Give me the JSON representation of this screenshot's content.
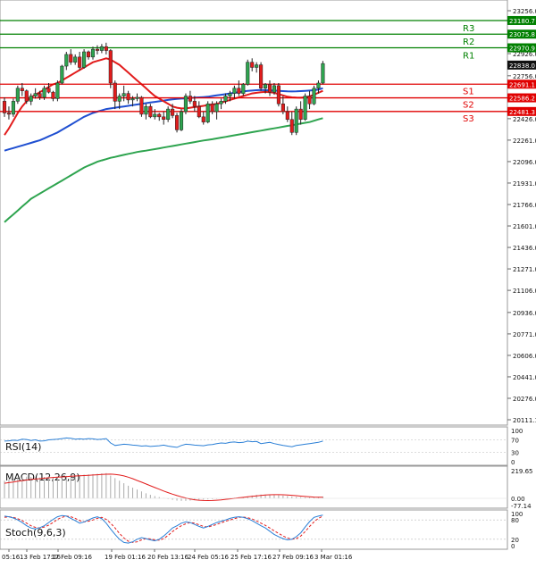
{
  "chart_data": {
    "type": "candlestick",
    "main": {
      "ylim": [
        20111.1,
        23365
      ],
      "y_ticks": [
        23256.0,
        23091.0,
        22926.0,
        22756.0,
        22591.0,
        22426.0,
        22261.0,
        22096.0,
        21931.0,
        21766.0,
        21601.0,
        21436.0,
        21271.0,
        21106.0,
        20936.0,
        20771.0,
        20606.0,
        20441.0,
        20276.0,
        20111.1
      ],
      "current_price": 22838.0,
      "levels": [
        {
          "name": "R3",
          "value": 23180.7,
          "color": "#008000"
        },
        {
          "name": "R2",
          "value": 23075.8,
          "color": "#008000"
        },
        {
          "name": "R1",
          "value": 22970.9,
          "color": "#008000"
        },
        {
          "name": "S1",
          "value": 22691.1,
          "color": "#e00000"
        },
        {
          "name": "S2",
          "value": 22586.2,
          "color": "#e00000"
        },
        {
          "name": "S3",
          "value": 22481.3,
          "color": "#e00000"
        }
      ],
      "candles": [
        [
          22560,
          22590,
          22440,
          22470
        ],
        [
          22470,
          22520,
          22420,
          22460
        ],
        [
          22460,
          22580,
          22440,
          22560
        ],
        [
          22560,
          22680,
          22540,
          22660
        ],
        [
          22660,
          22700,
          22600,
          22640
        ],
        [
          22640,
          22650,
          22540,
          22560
        ],
        [
          22560,
          22620,
          22530,
          22600
        ],
        [
          22600,
          22660,
          22580,
          22620
        ],
        [
          22620,
          22640,
          22570,
          22590
        ],
        [
          22590,
          22680,
          22570,
          22660
        ],
        [
          22660,
          22700,
          22620,
          22630
        ],
        [
          22630,
          22640,
          22560,
          22580
        ],
        [
          22580,
          22720,
          22560,
          22700
        ],
        [
          22700,
          22840,
          22690,
          22830
        ],
        [
          22830,
          22940,
          22800,
          22920
        ],
        [
          22920,
          22960,
          22840,
          22860
        ],
        [
          22860,
          22920,
          22840,
          22900
        ],
        [
          22900,
          22940,
          22800,
          22820
        ],
        [
          22820,
          22960,
          22810,
          22940
        ],
        [
          22940,
          22950,
          22880,
          22900
        ],
        [
          22900,
          22980,
          22880,
          22960
        ],
        [
          22960,
          22990,
          22920,
          22950
        ],
        [
          22950,
          23000,
          22930,
          22980
        ],
        [
          22980,
          23010,
          22920,
          22950
        ],
        [
          22950,
          22960,
          22660,
          22700
        ],
        [
          22700,
          22720,
          22500,
          22560
        ],
        [
          22560,
          22620,
          22500,
          22600
        ],
        [
          22600,
          22680,
          22560,
          22620
        ],
        [
          22620,
          22640,
          22540,
          22570
        ],
        [
          22570,
          22600,
          22520,
          22580
        ],
        [
          22580,
          22620,
          22560,
          22590
        ],
        [
          22590,
          22600,
          22440,
          22460
        ],
        [
          22460,
          22540,
          22420,
          22520
        ],
        [
          22520,
          22540,
          22430,
          22440
        ],
        [
          22440,
          22500,
          22420,
          22460
        ],
        [
          22460,
          22470,
          22410,
          22440
        ],
        [
          22440,
          22480,
          22380,
          22420
        ],
        [
          22420,
          22520,
          22400,
          22500
        ],
        [
          22500,
          22540,
          22430,
          22450
        ],
        [
          22450,
          22470,
          22320,
          22340
        ],
        [
          22340,
          22500,
          22330,
          22480
        ],
        [
          22480,
          22620,
          22460,
          22600
        ],
        [
          22600,
          22640,
          22540,
          22560
        ],
        [
          22560,
          22600,
          22480,
          22520
        ],
        [
          22520,
          22560,
          22430,
          22440
        ],
        [
          22440,
          22480,
          22380,
          22400
        ],
        [
          22400,
          22560,
          22390,
          22540
        ],
        [
          22540,
          22560,
          22460,
          22480
        ],
        [
          22480,
          22560,
          22420,
          22540
        ],
        [
          22540,
          22580,
          22500,
          22560
        ],
        [
          22560,
          22620,
          22540,
          22600
        ],
        [
          22600,
          22640,
          22560,
          22620
        ],
        [
          22620,
          22680,
          22580,
          22660
        ],
        [
          22660,
          22720,
          22600,
          22620
        ],
        [
          22620,
          22700,
          22600,
          22690
        ],
        [
          22690,
          22880,
          22680,
          22860
        ],
        [
          22860,
          22890,
          22790,
          22820
        ],
        [
          22820,
          22860,
          22780,
          22840
        ],
        [
          22840,
          22860,
          22640,
          22660
        ],
        [
          22660,
          22700,
          22620,
          22690
        ],
        [
          22690,
          22720,
          22600,
          22630
        ],
        [
          22630,
          22700,
          22610,
          22680
        ],
        [
          22680,
          22700,
          22520,
          22540
        ],
        [
          22540,
          22600,
          22460,
          22480
        ],
        [
          22480,
          22520,
          22400,
          22420
        ],
        [
          22420,
          22480,
          22300,
          22320
        ],
        [
          22320,
          22520,
          22300,
          22500
        ],
        [
          22500,
          22560,
          22380,
          22420
        ],
        [
          22420,
          22620,
          22410,
          22600
        ],
        [
          22600,
          22640,
          22500,
          22540
        ],
        [
          22540,
          22680,
          22530,
          22660
        ],
        [
          22660,
          22720,
          22620,
          22700
        ],
        [
          22700,
          22870,
          22690,
          22850
        ]
      ],
      "ma_red": [
        22300,
        22350,
        22410,
        22470,
        22520,
        22560,
        22590,
        22610,
        22630,
        22650,
        22670,
        22690,
        22700,
        22720,
        22740,
        22760,
        22780,
        22800,
        22820,
        22840,
        22860,
        22870,
        22880,
        22890,
        22880,
        22860,
        22840,
        22810,
        22780,
        22750,
        22720,
        22690,
        22660,
        22630,
        22600,
        22580,
        22560,
        22540,
        22520,
        22510,
        22505,
        22505,
        22510,
        22515,
        22520,
        22525,
        22530,
        22535,
        22540,
        22550,
        22560,
        22570,
        22580,
        22590,
        22600,
        22610,
        22620,
        22625,
        22630,
        22632,
        22630,
        22625,
        22615,
        22605,
        22595,
        22590,
        22588,
        22587,
        22590,
        22598,
        22610,
        22625,
        22640
      ],
      "ma_blue": [
        22180,
        22190,
        22200,
        22210,
        22220,
        22230,
        22240,
        22250,
        22260,
        22275,
        22290,
        22305,
        22320,
        22340,
        22360,
        22380,
        22400,
        22420,
        22440,
        22455,
        22470,
        22480,
        22490,
        22500,
        22505,
        22510,
        22515,
        22520,
        22525,
        22530,
        22535,
        22540,
        22545,
        22550,
        22555,
        22560,
        22565,
        22570,
        22575,
        22578,
        22580,
        22582,
        22585,
        22588,
        22590,
        22592,
        22595,
        22600,
        22605,
        22610,
        22615,
        22620,
        22625,
        22630,
        22635,
        22640,
        22642,
        22645,
        22646,
        22645,
        22644,
        22642,
        22640,
        22638,
        22636,
        22635,
        22636,
        22638,
        22640,
        22642,
        22645,
        22650,
        22660
      ],
      "ma_green": [
        21630,
        21660,
        21690,
        21720,
        21750,
        21780,
        21810,
        21830,
        21850,
        21870,
        21890,
        21910,
        21930,
        21950,
        21970,
        21990,
        22010,
        22030,
        22050,
        22065,
        22080,
        22095,
        22105,
        22115,
        22125,
        22132,
        22140,
        22148,
        22155,
        22162,
        22170,
        22175,
        22180,
        22186,
        22192,
        22198,
        22204,
        22210,
        22216,
        22222,
        22228,
        22234,
        22240,
        22246,
        22252,
        22258,
        22263,
        22268,
        22274,
        22280,
        22286,
        22292,
        22298,
        22304,
        22310,
        22316,
        22322,
        22328,
        22334,
        22340,
        22346,
        22352,
        22358,
        22364,
        22370,
        22376,
        22382,
        22388,
        22394,
        22400,
        22410,
        22420,
        22430
      ]
    },
    "x_labels": [
      "05:16",
      "13 Feb 17:16",
      "17 Feb 09:16",
      "19 Feb 01:16",
      "20 Feb 13:16",
      "24 Feb 05:16",
      "25 Feb 17:16",
      "27 Feb 09:16",
      "3 Mar 01:16"
    ],
    "rsi": {
      "label": "RSI(14)",
      "ticks": [
        "100",
        "70",
        "30",
        "0"
      ],
      "values": [
        66,
        67,
        69,
        68,
        72,
        71,
        68,
        70,
        66,
        67,
        70,
        71,
        72,
        74,
        76,
        75,
        72,
        73,
        72,
        74,
        73,
        71,
        72,
        74,
        60,
        52,
        54,
        56,
        55,
        53,
        52,
        50,
        51,
        49,
        50,
        51,
        53,
        50,
        48,
        46,
        52,
        56,
        55,
        53,
        52,
        51,
        54,
        55,
        58,
        60,
        59,
        62,
        63,
        61,
        62,
        66,
        64,
        65,
        58,
        60,
        62,
        58,
        55,
        52,
        50,
        48,
        52,
        54,
        56,
        58,
        60,
        62,
        66
      ]
    },
    "macd": {
      "label": "MACD(12,26,9)",
      "ticks": [
        "219.65",
        "0.00",
        "-77.14"
      ],
      "histogram": [
        140,
        150,
        160,
        165,
        170,
        172,
        170,
        168,
        165,
        170,
        172,
        170,
        168,
        172,
        178,
        182,
        185,
        186,
        188,
        190,
        192,
        195,
        198,
        200,
        180,
        160,
        140,
        120,
        100,
        85,
        70,
        55,
        40,
        28,
        18,
        10,
        2,
        -5,
        -12,
        -18,
        -20,
        -20,
        -18,
        -15,
        -12,
        -10,
        -8,
        -6,
        -4,
        -2,
        0,
        2,
        5,
        8,
        10,
        15,
        22,
        28,
        30,
        30,
        29,
        28,
        25,
        22,
        18,
        15,
        12,
        10,
        8,
        8,
        10,
        12,
        15
      ],
      "signal": [
        120,
        125,
        130,
        135,
        140,
        145,
        150,
        153,
        156,
        160,
        163,
        166,
        168,
        170,
        172,
        175,
        177,
        179,
        181,
        183,
        185,
        187,
        189,
        191,
        192,
        190,
        185,
        178,
        168,
        156,
        142,
        128,
        114,
        100,
        86,
        72,
        58,
        45,
        33,
        22,
        12,
        3,
        -5,
        -11,
        -15,
        -17,
        -18,
        -17,
        -15,
        -12,
        -8,
        -4,
        0,
        4,
        8,
        12,
        16,
        20,
        23,
        26,
        28,
        29,
        29,
        28,
        26,
        24,
        21,
        18,
        15,
        12,
        10,
        9,
        9
      ]
    },
    "stoch": {
      "label": "Stoch(9,6,3)",
      "ticks": [
        "100",
        "80",
        "20",
        "0"
      ],
      "k": [
        92,
        90,
        86,
        80,
        72,
        62,
        55,
        52,
        56,
        62,
        72,
        82,
        90,
        94,
        92,
        85,
        78,
        70,
        74,
        80,
        86,
        90,
        84,
        70,
        52,
        35,
        20,
        10,
        8,
        12,
        20,
        25,
        22,
        18,
        15,
        20,
        30,
        42,
        55,
        62,
        70,
        74,
        72,
        66,
        60,
        55,
        60,
        66,
        72,
        76,
        80,
        85,
        88,
        90,
        88,
        84,
        78,
        70,
        62,
        55,
        45,
        35,
        28,
        22,
        18,
        20,
        28,
        40,
        58,
        75,
        88,
        92,
        95
      ],
      "d": [
        88,
        90,
        88,
        84,
        78,
        70,
        62,
        57,
        55,
        58,
        64,
        72,
        82,
        88,
        92,
        90,
        85,
        78,
        74,
        76,
        80,
        85,
        88,
        82,
        70,
        55,
        38,
        24,
        14,
        10,
        12,
        18,
        22,
        21,
        18,
        17,
        22,
        32,
        44,
        54,
        62,
        68,
        72,
        70,
        65,
        60,
        58,
        62,
        66,
        71,
        76,
        80,
        84,
        88,
        89,
        87,
        83,
        77,
        70,
        63,
        55,
        46,
        38,
        30,
        24,
        20,
        22,
        30,
        44,
        60,
        74,
        85,
        92
      ]
    }
  }
}
